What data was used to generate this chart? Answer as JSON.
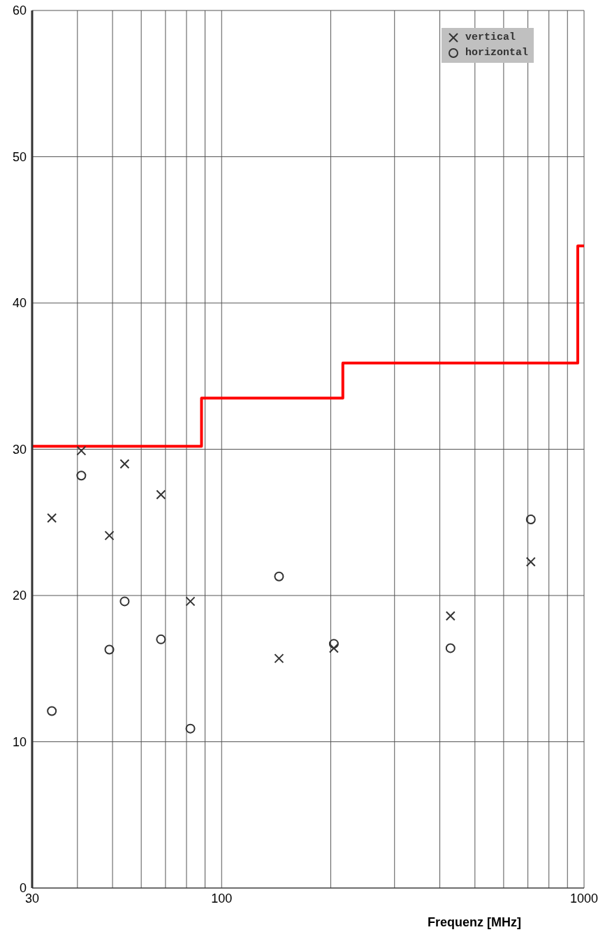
{
  "chart_data": {
    "type": "scatter",
    "xlabel": "Frequenz [MHz]",
    "log": "x",
    "grid": true,
    "legend": "top right",
    "xlim": [
      30,
      1000
    ],
    "ylim": [
      0,
      60
    ],
    "xticks": [
      30,
      {
        "value": 40,
        "label": null
      },
      {
        "value": 50,
        "label": null
      },
      {
        "value": 60,
        "label": null
      },
      {
        "value": 70,
        "label": null
      },
      {
        "value": 80,
        "label": null
      },
      {
        "value": 90,
        "label": null
      },
      100,
      {
        "value": 200,
        "label": null
      },
      {
        "value": 300,
        "label": null
      },
      {
        "value": 400,
        "label": null
      },
      {
        "value": 500,
        "label": null
      },
      {
        "value": 600,
        "label": null
      },
      {
        "value": 700,
        "label": null
      },
      {
        "value": 800,
        "label": null
      },
      {
        "value": 900,
        "label": null
      },
      1000
    ],
    "yticks": [
      0,
      10,
      20,
      30,
      40,
      50,
      60
    ],
    "series": [
      {
        "name": "vertical",
        "marker": "cross",
        "color": "#333333",
        "x": [
          34,
          41,
          49,
          54,
          68,
          82,
          144,
          204,
          428,
          713
        ],
        "values": [
          25.3,
          29.9,
          24.1,
          29.0,
          26.9,
          19.6,
          15.7,
          16.4,
          18.6,
          22.3
        ]
      },
      {
        "name": "horizontal",
        "marker": "circle",
        "color": "#333333",
        "x": [
          34,
          41,
          49,
          54,
          68,
          82,
          144,
          204,
          428,
          713
        ],
        "values": [
          12.1,
          28.2,
          16.3,
          19.6,
          17.0,
          10.9,
          21.3,
          16.7,
          16.4,
          25.2
        ]
      },
      {
        "type": "step",
        "marker": "none",
        "color": "#ff0000",
        "x": [
          30,
          88,
          216,
          961,
          1000
        ],
        "values": [
          30.2,
          33.5,
          35.9,
          43.9,
          43.9
        ]
      }
    ]
  }
}
